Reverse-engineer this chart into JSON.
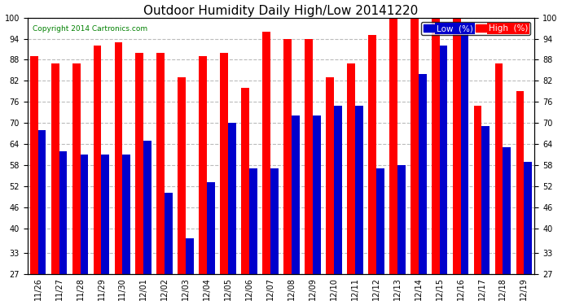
{
  "title": "Outdoor Humidity Daily High/Low 20141220",
  "copyright": "Copyright 2014 Cartronics.com",
  "legend_low_label": "Low  (%)",
  "legend_high_label": "High  (%)",
  "dates": [
    "11/26",
    "11/27",
    "11/28",
    "11/29",
    "11/30",
    "12/01",
    "12/02",
    "12/03",
    "12/04",
    "12/05",
    "12/06",
    "12/07",
    "12/08",
    "12/09",
    "12/10",
    "12/11",
    "12/12",
    "12/13",
    "12/14",
    "12/15",
    "12/16",
    "12/17",
    "12/18",
    "12/19"
  ],
  "high": [
    89,
    87,
    87,
    92,
    93,
    90,
    90,
    83,
    89,
    90,
    80,
    96,
    94,
    94,
    83,
    87,
    95,
    100,
    100,
    100,
    100,
    75,
    87,
    79
  ],
  "low": [
    68,
    62,
    61,
    61,
    61,
    65,
    50,
    37,
    53,
    70,
    57,
    57,
    72,
    72,
    75,
    75,
    57,
    58,
    84,
    92,
    96,
    69,
    63,
    59
  ],
  "ylim_min": 27,
  "ylim_max": 100,
  "yticks": [
    27,
    33,
    40,
    46,
    52,
    58,
    64,
    70,
    76,
    82,
    88,
    94,
    100
  ],
  "bar_width": 0.38,
  "high_color": "#ff0000",
  "low_color": "#0000cc",
  "bg_color": "#ffffff",
  "grid_color": "#bbbbbb",
  "title_fontsize": 11,
  "tick_fontsize": 7,
  "legend_fontsize": 7.5
}
